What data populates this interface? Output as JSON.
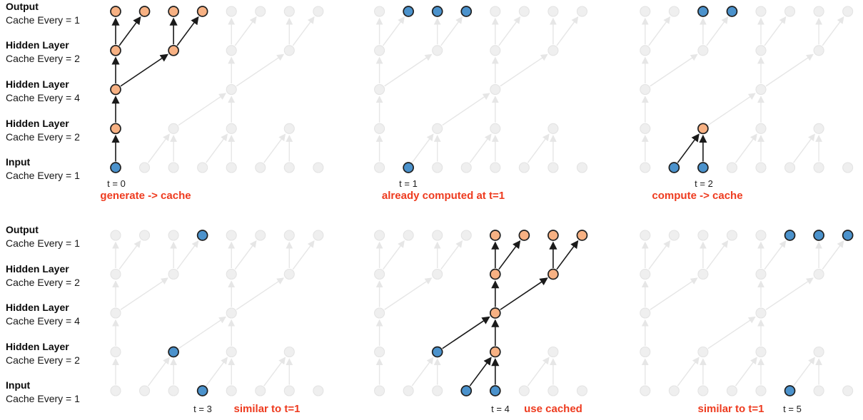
{
  "colors": {
    "computed": "#F7B183",
    "cached": "#4B92CC",
    "node_stroke": "#1F1F1F",
    "inactive_fill": "#EFEFEF",
    "inactive_stroke": "#E3E3E3",
    "inactive_edge": "#E6E6E6",
    "active_edge": "#1A1A1A",
    "caption": "#EE3B1F",
    "background": "#FFFFFF"
  },
  "layers": [
    {
      "title": "Output",
      "cache": "Cache Every = 1"
    },
    {
      "title": "Hidden Layer",
      "cache": "Cache Every = 2"
    },
    {
      "title": "Hidden Layer",
      "cache": "Cache Every = 4"
    },
    {
      "title": "Hidden Layer",
      "cache": "Cache Every = 2"
    },
    {
      "title": "Input",
      "cache": "Cache Every = 1"
    }
  ],
  "structure": {
    "layer_names": [
      "output",
      "hidden-cache2-upper",
      "hidden-cache4",
      "hidden-cache2-lower",
      "input"
    ],
    "node_columns": [
      [
        0,
        1,
        2,
        3,
        4,
        5,
        6,
        7
      ],
      [
        0,
        2,
        4,
        6
      ],
      [
        0,
        4
      ],
      [
        0,
        2,
        4,
        6
      ],
      [
        0,
        1,
        2,
        3,
        4,
        5,
        6,
        7
      ]
    ],
    "edges": [
      [
        4,
        0,
        3,
        0
      ],
      [
        4,
        1,
        3,
        2
      ],
      [
        4,
        2,
        3,
        2
      ],
      [
        4,
        3,
        3,
        4
      ],
      [
        4,
        4,
        3,
        4
      ],
      [
        4,
        5,
        3,
        6
      ],
      [
        4,
        6,
        3,
        6
      ],
      [
        3,
        0,
        2,
        0
      ],
      [
        3,
        2,
        2,
        4
      ],
      [
        3,
        4,
        2,
        4
      ],
      [
        2,
        0,
        1,
        0
      ],
      [
        2,
        0,
        1,
        2
      ],
      [
        2,
        4,
        1,
        4
      ],
      [
        2,
        4,
        1,
        6
      ],
      [
        1,
        0,
        0,
        0
      ],
      [
        1,
        0,
        0,
        1
      ],
      [
        1,
        2,
        0,
        2
      ],
      [
        1,
        2,
        0,
        3
      ],
      [
        1,
        4,
        0,
        4
      ],
      [
        1,
        4,
        0,
        5
      ],
      [
        1,
        6,
        0,
        6
      ],
      [
        1,
        6,
        0,
        7
      ]
    ]
  },
  "panels": [
    {
      "t_label": "t = 0",
      "caption": "generate -> cache",
      "blue": [
        [
          4,
          0
        ]
      ],
      "orange": [
        [
          3,
          0
        ],
        [
          2,
          0
        ],
        [
          1,
          0
        ],
        [
          1,
          2
        ],
        [
          0,
          0
        ],
        [
          0,
          1
        ],
        [
          0,
          2
        ],
        [
          0,
          3
        ]
      ],
      "active_edges": [
        [
          4,
          0,
          3,
          0
        ],
        [
          3,
          0,
          2,
          0
        ],
        [
          2,
          0,
          1,
          0
        ],
        [
          2,
          0,
          1,
          2
        ],
        [
          1,
          0,
          0,
          0
        ],
        [
          1,
          0,
          0,
          1
        ],
        [
          1,
          2,
          0,
          2
        ],
        [
          1,
          2,
          0,
          3
        ]
      ]
    },
    {
      "t_label": "t = 1",
      "caption": "already computed at t=1",
      "blue": [
        [
          4,
          1
        ],
        [
          0,
          1
        ],
        [
          0,
          2
        ],
        [
          0,
          3
        ]
      ],
      "orange": [],
      "active_edges": []
    },
    {
      "t_label": "t = 2",
      "caption": "compute -> cache",
      "blue": [
        [
          4,
          1
        ],
        [
          4,
          2
        ],
        [
          0,
          2
        ],
        [
          0,
          3
        ]
      ],
      "orange": [
        [
          3,
          2
        ]
      ],
      "active_edges": [
        [
          4,
          1,
          3,
          2
        ],
        [
          4,
          2,
          3,
          2
        ]
      ]
    },
    {
      "t_label": "t = 3",
      "caption": "similar to t=1",
      "blue": [
        [
          4,
          3
        ],
        [
          3,
          2
        ],
        [
          0,
          3
        ]
      ],
      "orange": [],
      "active_edges": []
    },
    {
      "t_label": "t = 4",
      "caption": "use cached",
      "blue": [
        [
          4,
          3
        ],
        [
          4,
          4
        ],
        [
          3,
          2
        ]
      ],
      "orange": [
        [
          3,
          4
        ],
        [
          2,
          4
        ],
        [
          1,
          4
        ],
        [
          1,
          6
        ],
        [
          0,
          4
        ],
        [
          0,
          5
        ],
        [
          0,
          6
        ],
        [
          0,
          7
        ]
      ],
      "active_edges": [
        [
          4,
          3,
          3,
          4
        ],
        [
          4,
          4,
          3,
          4
        ],
        [
          3,
          2,
          2,
          4
        ],
        [
          3,
          4,
          2,
          4
        ],
        [
          2,
          4,
          1,
          4
        ],
        [
          2,
          4,
          1,
          6
        ],
        [
          1,
          4,
          0,
          4
        ],
        [
          1,
          4,
          0,
          5
        ],
        [
          1,
          6,
          0,
          6
        ],
        [
          1,
          6,
          0,
          7
        ]
      ]
    },
    {
      "t_label": "t = 5",
      "caption": "similar to t=1",
      "blue": [
        [
          4,
          5
        ],
        [
          0,
          5
        ],
        [
          0,
          6
        ],
        [
          0,
          7
        ]
      ],
      "orange": [],
      "active_edges": []
    }
  ]
}
